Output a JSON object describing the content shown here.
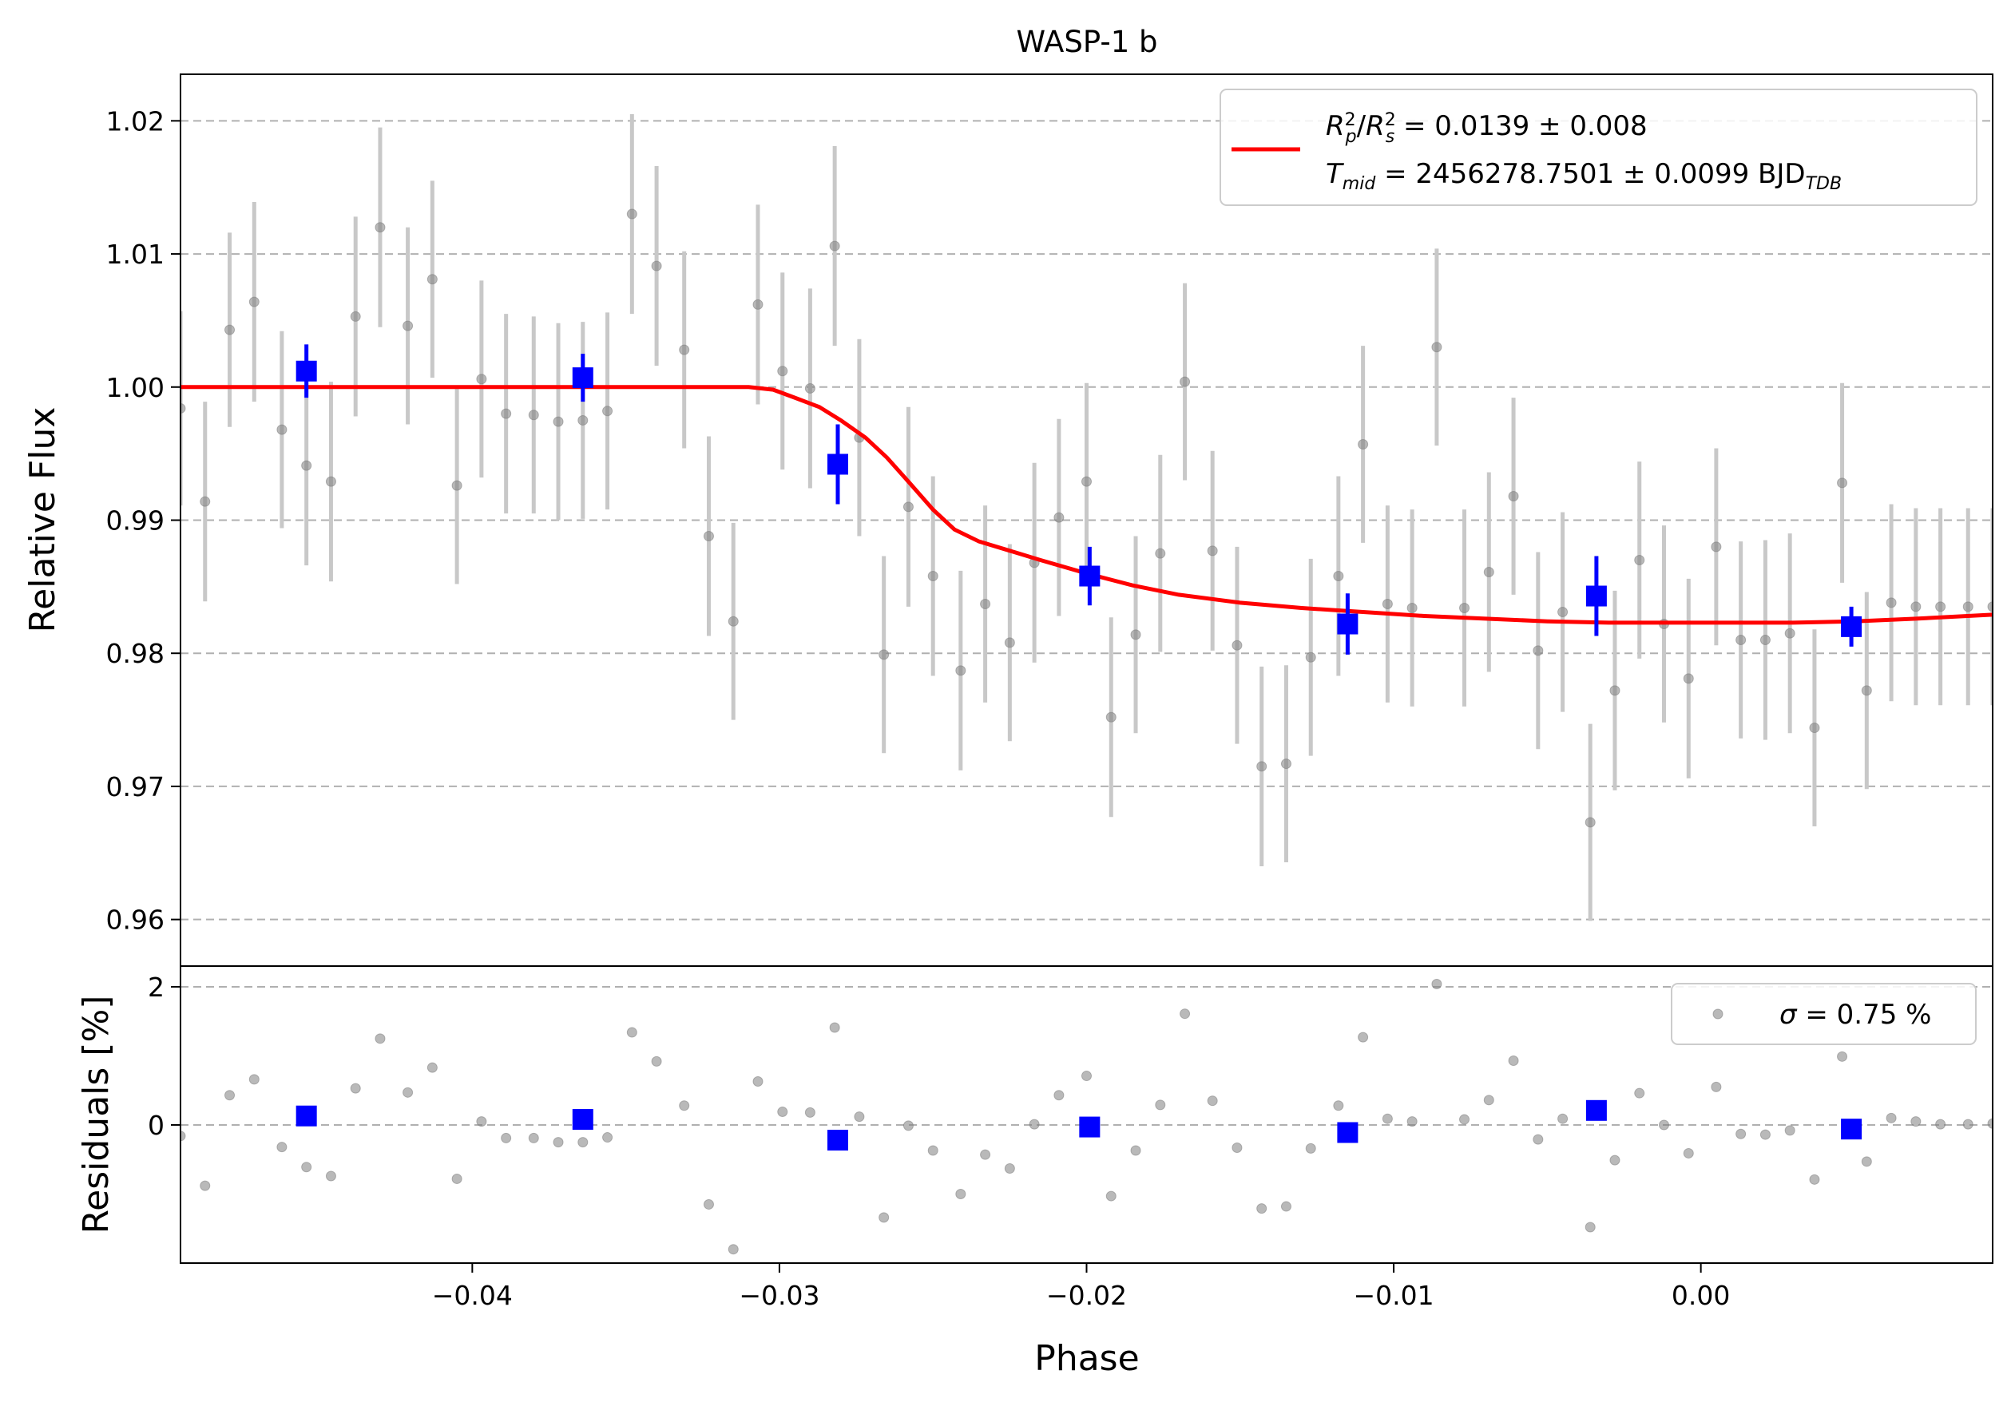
{
  "chart_data": [
    {
      "type": "scatter",
      "panel": "light-curve",
      "title": "WASP-1 b",
      "xlabel": "Phase",
      "ylabel": "Relative Flux",
      "xlim": [
        -0.0495,
        0.0095
      ],
      "ylim": [
        0.9565,
        1.0235
      ],
      "x_ticks": [
        -0.04,
        -0.03,
        -0.02,
        -0.01,
        0.0
      ],
      "x_tick_labels": [
        "−0.04",
        "−0.03",
        "−0.02",
        "−0.01",
        "0.00"
      ],
      "y_ticks": [
        0.96,
        0.97,
        0.98,
        0.99,
        1.0,
        1.01,
        1.02
      ],
      "y_tick_labels": [
        "0.96",
        "0.97",
        "0.98",
        "0.99",
        "1.00",
        "1.01",
        "1.02"
      ],
      "grid": "horizontal-dashed",
      "legend_position": "top-right",
      "legend": {
        "fit_line_1": "R₂ₚ/R²ₛ = 0.0139 ± 0.008",
        "fit_line_1_parts": {
          "sym": "R",
          "p_sub": "p",
          "s_sub": "s",
          "sup": "2",
          "value": " = 0.0139 ± 0.008"
        },
        "fit_line_2_parts": {
          "sym": "T",
          "sub": "mid",
          "value": " = 2456278.7501 ± 0.0099 BJD",
          "unit_sub": "TDB"
        }
      },
      "colors": {
        "data": "#808080",
        "errorbar": "#c8c8c8",
        "binned": "#0000ff",
        "model": "#ff0000",
        "grid": "#b0b0b0"
      },
      "series": [
        {
          "role": "data",
          "x": [
            -0.0495,
            -0.0487,
            -0.0479,
            -0.0471,
            -0.0462,
            -0.0454,
            -0.0446,
            -0.0438,
            -0.043,
            -0.0421,
            -0.0413,
            -0.0405,
            -0.0397,
            -0.0389,
            -0.038,
            -0.0372,
            -0.0364,
            -0.0356,
            -0.0348,
            -0.034,
            -0.0331,
            -0.0323,
            -0.0315,
            -0.0307,
            -0.0299,
            -0.029,
            -0.0282,
            -0.0274,
            -0.0266,
            -0.0258,
            -0.025,
            -0.0241,
            -0.0233,
            -0.0225,
            -0.0217,
            -0.0209,
            -0.02,
            -0.0192,
            -0.0184,
            -0.0176,
            -0.0168,
            -0.0159,
            -0.0151,
            -0.0143,
            -0.0135,
            -0.0127,
            -0.0118,
            -0.011,
            -0.0102,
            -0.0094,
            -0.0086,
            -0.0077,
            -0.0069,
            -0.0061,
            -0.0053,
            -0.0045,
            -0.0036,
            -0.0028,
            -0.002,
            -0.0012,
            -0.0004,
            0.0005,
            0.0013,
            0.0021,
            0.0029,
            0.0037,
            0.0046,
            0.0054,
            0.0062,
            0.007,
            0.0078,
            0.0087,
            0.0095
          ],
          "y": [
            0.9984,
            0.9914,
            1.0043,
            1.0064,
            0.9968,
            0.9941,
            0.9929,
            1.0053,
            1.012,
            1.0046,
            1.0081,
            0.9926,
            1.0006,
            0.998,
            0.9979,
            0.9974,
            0.9975,
            0.9982,
            1.013,
            1.0091,
            1.0028,
            0.9888,
            0.9824,
            1.0062,
            1.0012,
            0.9999,
            1.0106,
            0.9962,
            0.9799,
            0.991,
            0.9858,
            0.9787,
            0.9837,
            0.9808,
            0.9868,
            0.9902,
            0.9929,
            0.9752,
            0.9814,
            0.9875,
            1.0004,
            0.9877,
            0.9806,
            0.9715,
            0.9717,
            0.9797,
            0.9858,
            0.9957,
            0.9837,
            0.9834,
            1.003,
            0.9834,
            0.9861,
            0.9918,
            0.9802,
            0.9831,
            0.9673,
            0.9772,
            0.987,
            0.9822,
            0.9781,
            0.988,
            0.981,
            0.981,
            0.9815,
            0.9744,
            0.9928,
            0.9772,
            0.9838,
            0.9835,
            0.9835,
            0.9835,
            0.9835
          ],
          "err": [
            0.0073,
            0.0075,
            0.0073,
            0.0075,
            0.0074,
            0.0075,
            0.0075,
            0.0075,
            0.0075,
            0.0074,
            0.0074,
            0.0074,
            0.0074,
            0.0075,
            0.0074,
            0.0074,
            0.0074,
            0.0074,
            0.0075,
            0.0075,
            0.0074,
            0.0075,
            0.0074,
            0.0075,
            0.0074,
            0.0075,
            0.0075,
            0.0074,
            0.0074,
            0.0075,
            0.0075,
            0.0075,
            0.0074,
            0.0074,
            0.0075,
            0.0074,
            0.0074,
            0.0075,
            0.0074,
            0.0074,
            0.0074,
            0.0075,
            0.0074,
            0.0075,
            0.0074,
            0.0074,
            0.0075,
            0.0074,
            0.0074,
            0.0074,
            0.0074,
            0.0074,
            0.0075,
            0.0074,
            0.0074,
            0.0075,
            0.0074,
            0.0075,
            0.0074,
            0.0074,
            0.0075,
            0.0074,
            0.0074,
            0.0075,
            0.0075,
            0.0074,
            0.0075,
            0.0074,
            0.0074,
            0.0074,
            0.0074,
            0.0074,
            0.0074
          ]
        },
        {
          "role": "binned",
          "x": [
            -0.0454,
            -0.0364,
            -0.0281,
            -0.0199,
            -0.0115,
            -0.0034,
            0.0049
          ],
          "y": [
            1.0012,
            1.0007,
            0.9942,
            0.9858,
            0.9822,
            0.9843,
            0.982
          ],
          "err": [
            0.002,
            0.0018,
            0.003,
            0.0022,
            0.0023,
            0.003,
            0.0015
          ]
        },
        {
          "role": "model",
          "x": [
            -0.0495,
            -0.031,
            -0.0302,
            -0.0295,
            -0.0287,
            -0.028,
            -0.0272,
            -0.0265,
            -0.0258,
            -0.025,
            -0.0243,
            -0.0235,
            -0.0225,
            -0.0215,
            -0.02,
            -0.0185,
            -0.017,
            -0.015,
            -0.013,
            -0.011,
            -0.009,
            -0.007,
            -0.005,
            -0.003,
            -0.001,
            0.001,
            0.003,
            0.005,
            0.007,
            0.0095
          ],
          "y": [
            1.0,
            1.0,
            0.9998,
            0.9992,
            0.9985,
            0.9975,
            0.9962,
            0.9947,
            0.9929,
            0.9908,
            0.9893,
            0.9884,
            0.9877,
            0.987,
            0.986,
            0.9851,
            0.9844,
            0.9838,
            0.9834,
            0.9831,
            0.9828,
            0.9826,
            0.9824,
            0.9823,
            0.9823,
            0.9823,
            0.9823,
            0.9824,
            0.9826,
            0.9829
          ]
        }
      ]
    },
    {
      "type": "scatter",
      "panel": "residuals",
      "xlabel": "Phase",
      "ylabel": "Residuals [%]",
      "xlim": [
        -0.0495,
        0.0095
      ],
      "ylim": [
        -2.0,
        2.3
      ],
      "y_ticks": [
        0,
        2
      ],
      "y_tick_labels": [
        "0",
        "2"
      ],
      "grid": "horizontal-dashed",
      "legend_position": "top-right",
      "legend": {
        "sigma_sym": "σ",
        "sigma_value": " = 0.75 %"
      },
      "series": [
        {
          "role": "residuals",
          "x": [
            -0.0495,
            -0.0487,
            -0.0479,
            -0.0471,
            -0.0462,
            -0.0454,
            -0.0446,
            -0.0438,
            -0.043,
            -0.0421,
            -0.0413,
            -0.0405,
            -0.0397,
            -0.0389,
            -0.038,
            -0.0372,
            -0.0364,
            -0.0356,
            -0.0348,
            -0.034,
            -0.0331,
            -0.0323,
            -0.0315,
            -0.0307,
            -0.0299,
            -0.029,
            -0.0282,
            -0.0274,
            -0.0266,
            -0.0258,
            -0.025,
            -0.0241,
            -0.0233,
            -0.0225,
            -0.0217,
            -0.0209,
            -0.02,
            -0.0192,
            -0.0184,
            -0.0176,
            -0.0168,
            -0.0159,
            -0.0151,
            -0.0143,
            -0.0135,
            -0.0127,
            -0.0118,
            -0.011,
            -0.0102,
            -0.0094,
            -0.0086,
            -0.0077,
            -0.0069,
            -0.0061,
            -0.0053,
            -0.0045,
            -0.0036,
            -0.0028,
            -0.002,
            -0.0012,
            -0.0004,
            0.0005,
            0.0013,
            0.0021,
            0.0029,
            0.0037,
            0.0046,
            0.0054,
            0.0062,
            0.007,
            0.0078,
            0.0087,
            0.0095
          ],
          "y": [
            -0.16,
            -0.88,
            0.43,
            0.66,
            -0.32,
            -0.61,
            -0.74,
            0.53,
            1.25,
            0.47,
            0.83,
            -0.78,
            0.05,
            -0.19,
            -0.19,
            -0.25,
            -0.25,
            -0.18,
            1.34,
            0.92,
            0.28,
            -1.15,
            -1.8,
            0.63,
            0.19,
            0.18,
            1.41,
            0.12,
            -1.34,
            -0.01,
            -0.37,
            -1.0,
            -0.43,
            -0.63,
            0.01,
            0.43,
            0.71,
            -1.03,
            -0.37,
            0.29,
            1.61,
            0.35,
            -0.33,
            -1.21,
            -1.18,
            -0.34,
            0.28,
            1.27,
            0.09,
            0.05,
            2.04,
            0.08,
            0.36,
            0.93,
            -0.21,
            0.09,
            -1.48,
            -0.51,
            0.46,
            0.0,
            -0.41,
            0.55,
            -0.13,
            -0.14,
            -0.08,
            -0.79,
            0.99,
            -0.53,
            0.1,
            0.05,
            0.01,
            0.01,
            0.02
          ]
        },
        {
          "role": "binned",
          "x": [
            -0.0454,
            -0.0364,
            -0.0281,
            -0.0199,
            -0.0115,
            -0.0034,
            0.0049
          ],
          "y": [
            0.13,
            0.08,
            -0.22,
            -0.03,
            -0.11,
            0.21,
            -0.06
          ]
        }
      ]
    }
  ]
}
